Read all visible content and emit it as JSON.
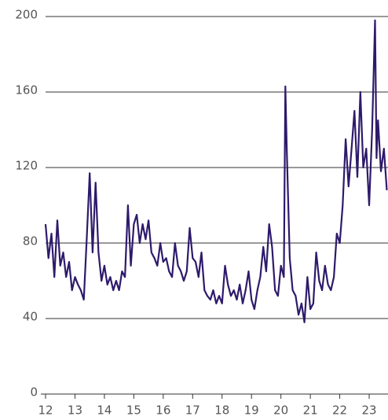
{
  "chart_data": {
    "type": "line",
    "x": [
      12.0,
      12.1,
      12.2,
      12.3,
      12.4,
      12.5,
      12.6,
      12.7,
      12.8,
      12.9,
      13.0,
      13.1,
      13.2,
      13.3,
      13.4,
      13.5,
      13.6,
      13.7,
      13.8,
      13.9,
      14.0,
      14.1,
      14.2,
      14.3,
      14.4,
      14.5,
      14.6,
      14.7,
      14.8,
      14.9,
      15.0,
      15.1,
      15.2,
      15.3,
      15.4,
      15.5,
      15.6,
      15.7,
      15.8,
      15.9,
      16.0,
      16.1,
      16.2,
      16.3,
      16.4,
      16.5,
      16.6,
      16.7,
      16.8,
      16.9,
      17.0,
      17.1,
      17.2,
      17.3,
      17.4,
      17.5,
      17.6,
      17.7,
      17.8,
      17.9,
      18.0,
      18.1,
      18.2,
      18.3,
      18.4,
      18.5,
      18.6,
      18.7,
      18.8,
      18.9,
      19.0,
      19.1,
      19.2,
      19.3,
      19.4,
      19.5,
      19.6,
      19.7,
      19.8,
      19.9,
      20.0,
      20.1,
      20.15,
      20.2,
      20.3,
      20.4,
      20.5,
      20.6,
      20.7,
      20.8,
      20.9,
      21.0,
      21.1,
      21.2,
      21.3,
      21.4,
      21.5,
      21.6,
      21.7,
      21.8,
      21.9,
      22.0,
      22.1,
      22.2,
      22.3,
      22.4,
      22.5,
      22.6,
      22.7,
      22.8,
      22.9,
      23.0,
      23.1,
      23.2,
      23.25,
      23.3,
      23.4,
      23.5,
      23.6
    ],
    "series": [
      {
        "color": "#2e1a6b",
        "values": [
          90,
          72,
          85,
          62,
          92,
          68,
          75,
          62,
          70,
          55,
          62,
          58,
          55,
          50,
          82,
          117,
          75,
          112,
          75,
          60,
          68,
          58,
          62,
          55,
          60,
          55,
          65,
          62,
          100,
          68,
          90,
          95,
          80,
          90,
          82,
          92,
          75,
          72,
          68,
          80,
          70,
          72,
          65,
          62,
          80,
          68,
          65,
          60,
          65,
          88,
          72,
          70,
          62,
          75,
          55,
          52,
          50,
          55,
          48,
          52,
          48,
          68,
          58,
          52,
          55,
          50,
          58,
          48,
          55,
          65,
          50,
          45,
          55,
          62,
          78,
          65,
          90,
          78,
          55,
          52,
          68,
          62,
          163,
          130,
          72,
          55,
          52,
          42,
          48,
          38,
          62,
          45,
          48,
          75,
          60,
          55,
          68,
          58,
          55,
          62,
          85,
          80,
          100,
          135,
          110,
          130,
          150,
          115,
          160,
          120,
          130,
          100,
          140,
          198,
          125,
          145,
          118,
          130,
          108
        ]
      }
    ],
    "xlim": [
      12,
      23.64
    ],
    "xticks": [
      12,
      13,
      14,
      15,
      16,
      17,
      18,
      19,
      20,
      21,
      22,
      23
    ],
    "ylim": [
      0,
      200
    ],
    "yticks": [
      0,
      40,
      80,
      120,
      160,
      200
    ],
    "grid": true
  }
}
